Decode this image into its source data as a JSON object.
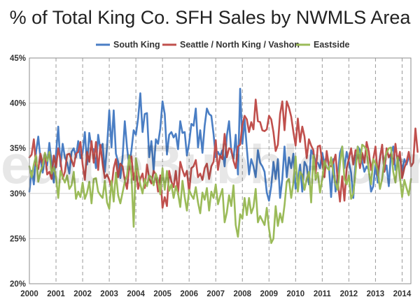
{
  "chart_data": {
    "type": "line",
    "title": "% of Total King Co. SFH Sales by NWMLS Area",
    "watermark": "SeattleBubble.com",
    "xlim": [
      2000,
      2014.33
    ],
    "ylim": [
      20,
      45
    ],
    "x_ticks": [
      2000,
      2001,
      2002,
      2003,
      2004,
      2005,
      2006,
      2007,
      2008,
      2009,
      2010,
      2011,
      2012,
      2013,
      2014
    ],
    "x_tick_labels": [
      "2000",
      "2001",
      "2002",
      "2003",
      "2004",
      "2005",
      "2006",
      "2007",
      "2008",
      "2009",
      "2010",
      "2011",
      "2012",
      "2013",
      "2014"
    ],
    "y_ticks": [
      20,
      25,
      30,
      35,
      40,
      45
    ],
    "y_tick_labels": [
      "20%",
      "25%",
      "30%",
      "35%",
      "40%",
      "45%"
    ],
    "x_grid": "dashed",
    "y_grid": "solid",
    "legend_position": "top",
    "series": [
      {
        "name": "South King",
        "color": "#4a7ec4",
        "values": [
          30.2,
          32.5,
          31.0,
          34.6,
          36.3,
          33.8,
          32.3,
          34.0,
          33.1,
          35.6,
          33.4,
          31.2,
          34.4,
          37.4,
          33.0,
          35.5,
          34.0,
          33.4,
          32.2,
          34.6,
          35.0,
          34.0,
          35.8,
          33.9,
          34.5,
          36.8,
          33.2,
          36.7,
          35.0,
          34.9,
          32.8,
          36.5,
          34.8,
          35.5,
          32.4,
          35.2,
          39.2,
          35.1,
          39.2,
          34.4,
          33.5,
          31.7,
          34.0,
          38.0,
          35.1,
          33.0,
          34.8,
          37.0,
          36.5,
          38.3,
          41.1,
          36.8,
          38.8,
          38.9,
          34.0,
          35.8,
          32.5,
          36.0,
          35.5,
          37.2,
          40.2,
          38.8,
          34.3,
          36.5,
          36.8,
          36.2,
          36.6,
          34.9,
          38.0,
          36.7,
          36.8,
          34.2,
          35.6,
          37.7,
          37.5,
          39.4,
          35.1,
          37.0,
          34.5,
          37.5,
          39.4,
          38.8,
          38.6,
          36.6,
          34.0,
          34.6,
          34.1,
          34.8,
          33.0,
          36.4,
          38.0,
          34.6,
          33.8,
          36.5,
          32.1,
          41.6,
          35.5,
          38.2,
          35.0,
          32.1,
          33.8,
          33.0,
          31.8,
          34.8,
          33.4,
          33.0,
          32.4,
          30.1,
          29.2,
          30.8,
          33.5,
          31.6,
          33.8,
          29.5,
          31.6,
          35.2,
          31.8,
          34.0,
          32.8,
          34.4,
          30.5,
          31.5,
          33.2,
          30.2,
          33.5,
          33.0,
          31.0,
          34.8,
          34.3,
          33.5,
          33.4,
          32.8,
          34.5,
          33.3,
          34.2,
          33.0,
          29.6,
          33.8,
          30.2,
          32.0,
          34.5,
          35.2,
          32.8,
          34.6,
          33.5,
          32.3,
          29.5,
          33.4,
          35.2,
          34.8,
          33.5,
          32.4,
          33.0,
          32.6,
          30.2,
          30.8,
          33.3,
          31.2,
          34.1,
          35.3,
          32.4,
          33.1,
          30.8,
          34.5,
          35.2,
          32.6,
          33.4,
          34.0,
          32.5,
          33.8,
          33.2,
          34.0
        ]
      },
      {
        "name": "Seattle / North King / Vashon",
        "color": "#c0504d",
        "values": [
          34.0,
          34.3,
          36.0,
          33.1,
          32.7,
          34.4,
          33.2,
          34.5,
          32.1,
          32.4,
          31.6,
          34.2,
          32.9,
          35.0,
          33.7,
          31.6,
          32.4,
          34.3,
          34.4,
          33.7,
          33.0,
          34.4,
          34.6,
          35.7,
          33.2,
          31.5,
          34.6,
          33.5,
          35.8,
          33.4,
          35.7,
          32.6,
          35.4,
          33.3,
          31.7,
          32.1,
          31.5,
          30.6,
          32.8,
          33.8,
          31.8,
          33.3,
          33.0,
          31.5,
          30.5,
          33.0,
          34.1,
          31.5,
          32.8,
          30.5,
          31.6,
          32.2,
          30.6,
          33.2,
          31.7,
          31.1,
          32.5,
          32.1,
          30.2,
          32.0,
          28.4,
          29.6,
          28.6,
          32.5,
          31.3,
          30.7,
          32.5,
          29.9,
          33.5,
          32.6,
          31.9,
          32.5,
          30.1,
          32.8,
          33.0,
          33.7,
          31.8,
          32.2,
          31.5,
          32.8,
          33.3,
          31.6,
          33.0,
          33.5,
          35.9,
          32.6,
          34.2,
          33.8,
          36.6,
          34.0,
          35.0,
          34.9,
          33.6,
          32.8,
          35.2,
          35.4,
          37.6,
          38.6,
          38.2,
          36.8,
          37.9,
          37.1,
          40.4,
          38.0,
          37.9,
          37.0,
          36.9,
          37.1,
          38.6,
          38.2,
          36.8,
          34.7,
          35.4,
          38.8,
          40.2,
          37.0,
          40.2,
          39.5,
          38.5,
          36.8,
          35.3,
          38.3,
          35.7,
          37.4,
          36.3,
          33.9,
          36.0,
          35.3,
          34.8,
          32.2,
          35.2,
          35.3,
          33.4,
          31.8,
          34.7,
          33.1,
          33.0,
          33.4,
          34.3,
          31.3,
          29.1,
          31.9,
          29.2,
          32.8,
          33.8,
          35.0,
          33.2,
          34.8,
          34.7,
          32.8,
          34.5,
          33.4,
          35.7,
          34.6,
          32.6,
          33.8,
          35.2,
          32.0,
          33.8,
          35.4,
          32.4,
          35.0,
          34.0,
          34.4,
          33.2,
          35.5,
          33.5,
          34.6,
          31.7,
          32.8,
          33.5,
          34.6,
          33.0,
          33.4,
          37.2,
          34.6
        ]
      },
      {
        "name": "Eastside",
        "color": "#9bbb59",
        "values": [
          33.0,
          31.8,
          33.2,
          34.2,
          31.3,
          32.4,
          33.0,
          34.5,
          33.6,
          34.6,
          32.2,
          32.9,
          31.8,
          29.5,
          32.5,
          31.8,
          31.2,
          32.0,
          30.5,
          30.9,
          32.4,
          29.4,
          30.2,
          29.6,
          31.2,
          29.4,
          30.1,
          31.3,
          28.9,
          31.6,
          31.7,
          30.2,
          29.8,
          29.5,
          31.4,
          29.0,
          28.3,
          31.4,
          29.1,
          32.3,
          29.8,
          28.9,
          30.1,
          31.3,
          32.0,
          34.2,
          32.0,
          26.3,
          33.9,
          32.5,
          31.0,
          30.0,
          31.6,
          30.8,
          32.0,
          31.8,
          30.9,
          32.2,
          31.4,
          29.9,
          32.8,
          30.4,
          32.5,
          30.3,
          31.0,
          29.5,
          30.8,
          30.0,
          28.5,
          31.4,
          29.6,
          28.1,
          30.4,
          29.8,
          29.4,
          30.7,
          29.0,
          27.8,
          30.1,
          29.3,
          30.6,
          28.1,
          30.2,
          29.5,
          31.0,
          28.8,
          29.7,
          30.5,
          26.8,
          27.9,
          29.8,
          28.6,
          30.9,
          26.5,
          25.2,
          27.7,
          27.2,
          29.5,
          27.6,
          29.5,
          27.8,
          28.5,
          30.5,
          26.8,
          27.5,
          27.0,
          26.5,
          28.4,
          26.1,
          24.5,
          25.0,
          28.6,
          26.4,
          27.8,
          26.8,
          28.7,
          31.3,
          31.6,
          29.5,
          31.2,
          34.1,
          30.2,
          32.4,
          32.0,
          30.4,
          31.6,
          32.4,
          29.0,
          34.2,
          31.5,
          32.3,
          30.1,
          31.6,
          33.6,
          32.9,
          32.6,
          34.0,
          32.2,
          31.1,
          30.4,
          33.3,
          35.2,
          31.6,
          31.0,
          32.0,
          29.4,
          30.0,
          32.3,
          35.2,
          33.4,
          35.4,
          35.2,
          34.8,
          32.4,
          31.0,
          33.8,
          33.3,
          32.5,
          30.5,
          31.6,
          33.6,
          34.5,
          35.0,
          35.1,
          32.4,
          31.2,
          34.0,
          31.8,
          29.6,
          31.5,
          30.6,
          29.8,
          31.6
        ]
      }
    ]
  }
}
